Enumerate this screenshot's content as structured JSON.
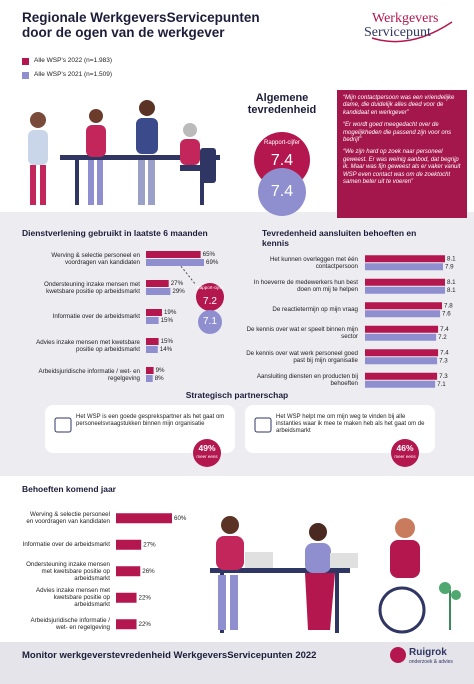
{
  "header": {
    "title_line1": "Regionale WerkgeversServicepunten",
    "title_line2": "door de ogen van de werkgever",
    "logo_line1": "Werkgevers",
    "logo_line2": "Servicepunt"
  },
  "overall": {
    "title": "Algemene tevredenheid",
    "label": "Rapport-cijfer",
    "scores": [
      7.4,
      7.4
    ]
  },
  "quotes": [
    "“Mijn contactpersoon was een vriendelijke dame, die duidelijk alles deed voor de kandidaat en werkgever”",
    "“Er wordt goed meegedacht over de mogelijkheden die passend zijn voor ons bedrijf”",
    "“We zijn hard op zoek naar personeel geweest. Er was weinig aanbod, dat begrijp ik. Maar was fijn geweest als er vaker vanuit WSP even contact was om de zoektocht samen beter uit te voeren”"
  ],
  "chart_data": [
    {
      "type": "bar",
      "title": "Dienstverlening gebruikt in laatste 6 maanden",
      "categories": [
        "Werving & selectie personeel en voordragen van kandidaten",
        "Ondersteuning inzake mensen met kwetsbare positie op arbeidsmarkt",
        "Informatie over de arbeidsmarkt",
        "Advies inzake mensen met kwetsbare positie op arbeidsmarkt",
        "Arbeidsjuridische informatie / wet- en regelgeving"
      ],
      "series": [
        {
          "name": "Alle WSP's 2022 (n=1.983)",
          "color": "#b3174e",
          "values": [
            65,
            27,
            19,
            15,
            9
          ],
          "value_labels": [
            "65%",
            "27%",
            "19%",
            "15%",
            "9%"
          ]
        },
        {
          "name": "Alle WSP's 2021 (n=1.509)",
          "color": "#8f8fd0",
          "values": [
            69,
            29,
            15,
            14,
            8
          ],
          "value_labels": [
            "69%",
            "29%",
            "15%",
            "14%",
            "8%"
          ]
        }
      ],
      "score_label": "Rapport-cijfer",
      "scores": [
        7.2,
        7.1
      ]
    },
    {
      "type": "bar",
      "title": "Tevredenheid aansluiten behoeften en kennis",
      "categories": [
        "Het kunnen overleggen met één contactpersoon",
        "In hoeverre de medewerkers hun best doen om mij te helpen",
        "De reactietermijn op mijn vraag",
        "De kennis over wat er speelt binnen mijn sector",
        "De kennis over wat werk personeel goed past bij mijn organisatie",
        "Aansluiting diensten en producten bij behoeften"
      ],
      "series": [
        {
          "color": "#b3174e",
          "values": [
            8.1,
            8.1,
            7.8,
            7.4,
            7.4,
            7.3
          ]
        },
        {
          "color": "#8f8fd0",
          "values": [
            7.9,
            8.1,
            7.6,
            7.2,
            7.3,
            7.1
          ]
        }
      ]
    },
    {
      "type": "bar",
      "title": "Behoeften komend jaar",
      "categories": [
        "Werving & selectie personeel en voordragen van kandidaten",
        "Informatie over de arbeidsmarkt",
        "Ondersteuning inzake mensen met kwetsbare positie op arbeidsmarkt",
        "Advies inzake mensen met kwetsbare positie op arbeidsmarkt",
        "Arbeidsjuridische informatie / wet- en regelgeving"
      ],
      "series": [
        {
          "color": "#b3174e",
          "values": [
            60,
            27,
            26,
            22,
            22
          ],
          "value_labels": [
            "60%",
            "27%",
            "26%",
            "22%",
            "22%"
          ]
        }
      ]
    }
  ],
  "partnership": {
    "title": "Strategisch partnerschap",
    "items": [
      {
        "text": "Het WSP is een goede gesprekspartner als het gaat om personeelsvraagstukken binnen mijn organisatie",
        "value": "49%",
        "label": "meer eens"
      },
      {
        "text": "Het WSP helpt me om mijn weg te vinden bij alle instanties waar ik mee te maken heb als het gaat om de arbeidsmarkt",
        "value": "46%",
        "label": "meer eens"
      }
    ]
  },
  "footer": {
    "title": "Monitor werkgeverstevredenheid WerkgeversServicepunten 2022",
    "brand": "Ruigrok",
    "brand_sub": "onderzoek & advies"
  }
}
